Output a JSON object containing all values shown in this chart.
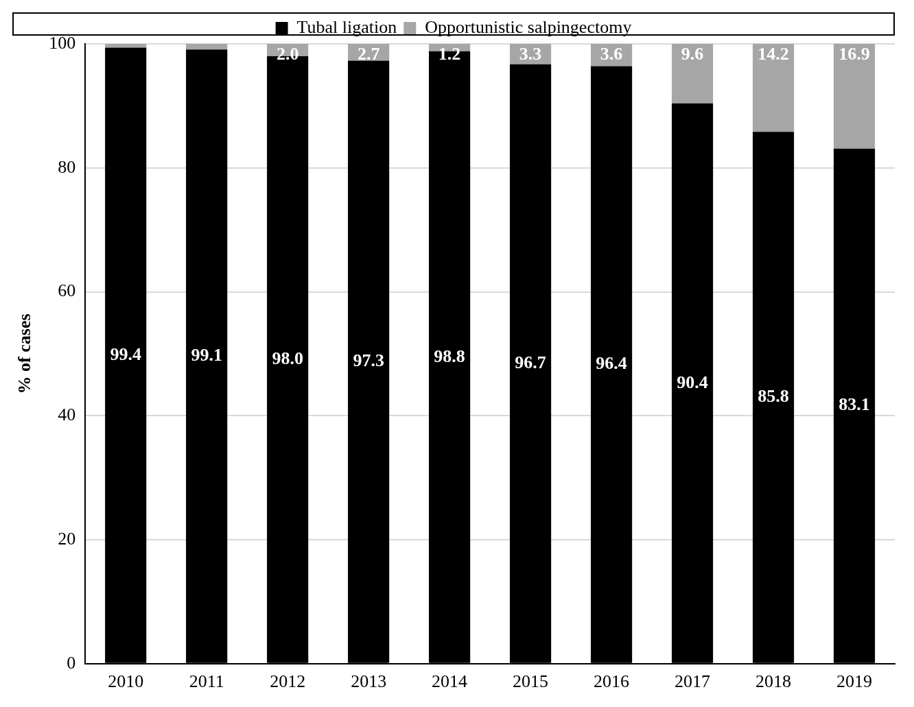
{
  "chart_data": {
    "type": "bar",
    "ylabel": "% of cases",
    "stacked": true,
    "categories": [
      "2010",
      "2011",
      "2012",
      "2013",
      "2014",
      "2015",
      "2016",
      "2017",
      "2018",
      "2019"
    ],
    "series": [
      {
        "name": "Tubal ligation",
        "color": "#000000",
        "values": [
          99.4,
          99.1,
          98.0,
          97.3,
          98.8,
          96.7,
          96.4,
          90.4,
          85.8,
          83.1
        ],
        "value_labels": [
          "99.4",
          "99.1",
          "98.0",
          "97.3",
          "98.8",
          "96.7",
          "96.4",
          "90.4",
          "85.8",
          "83.1"
        ]
      },
      {
        "name": "Opportunistic salpingectomy",
        "color": "#a6a6a6",
        "values": [
          0.6,
          0.9,
          2.0,
          2.7,
          1.2,
          3.3,
          3.6,
          9.6,
          14.2,
          16.9
        ],
        "value_labels": [
          null,
          null,
          "2.0",
          "2.7",
          "1.2",
          "3.3",
          "3.6",
          "9.6",
          "14.2",
          "16.9"
        ]
      }
    ],
    "ylim": [
      0,
      100
    ],
    "yticks": [
      0,
      20,
      40,
      60,
      80,
      100
    ],
    "grid": "y",
    "legend": "top"
  }
}
